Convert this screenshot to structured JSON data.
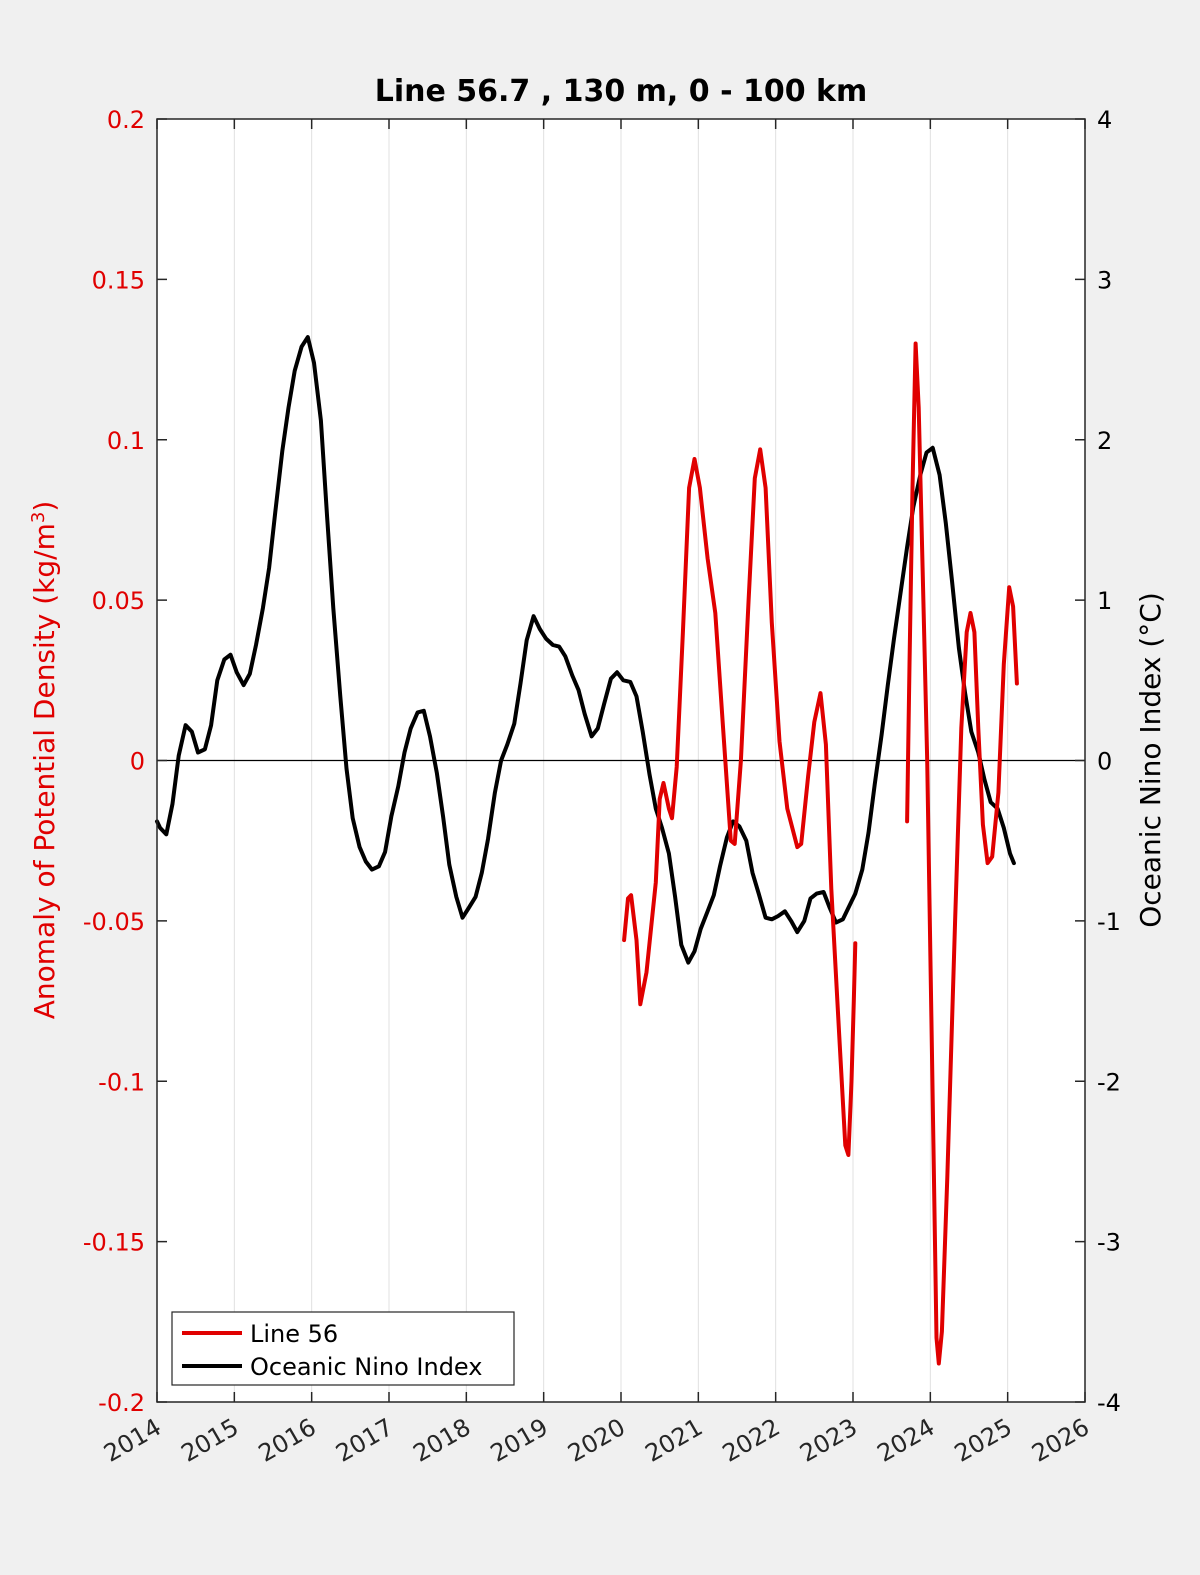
{
  "chart_data": {
    "type": "line",
    "title": "Line 56.7 , 130 m, 0 - 100 km",
    "xlim": [
      2014,
      2026
    ],
    "x_ticks": [
      "2014",
      "2015",
      "2016",
      "2017",
      "2018",
      "2019",
      "2020",
      "2021",
      "2022",
      "2023",
      "2024",
      "2025",
      "2026"
    ],
    "y_left": {
      "label_prefix": "Anomaly of Potential Density (kg/m",
      "label_sup": "3",
      "label_suffix": ")",
      "color": "#e00000",
      "lim": [
        -0.2,
        0.2
      ],
      "ticks": [
        "0.2",
        "0.15",
        "0.1",
        "0.05",
        "0",
        "-0.05",
        "-0.1",
        "-0.15",
        "-0.2"
      ],
      "tick_values": [
        0.2,
        0.15,
        0.1,
        0.05,
        0,
        -0.05,
        -0.1,
        -0.15,
        -0.2
      ]
    },
    "y_right": {
      "label": "Oceanic Nino Index (°C)",
      "color": "#000000",
      "lim": [
        -4,
        4
      ],
      "ticks": [
        "4",
        "3",
        "2",
        "1",
        "0",
        "-1",
        "-2",
        "-3",
        "-4"
      ],
      "tick_values": [
        4,
        3,
        2,
        1,
        0,
        -1,
        -2,
        -3,
        -4
      ]
    },
    "grid": "vertical",
    "legend_position": "bottom-left",
    "series": [
      {
        "name": "Line 56",
        "axis": "left",
        "color": "#e00000",
        "segments": [
          [
            [
              2020.04,
              -0.056
            ],
            [
              2020.09,
              -0.043
            ],
            [
              2020.13,
              -0.042
            ],
            [
              2020.2,
              -0.056
            ],
            [
              2020.25,
              -0.076
            ],
            [
              2020.33,
              -0.066
            ],
            [
              2020.45,
              -0.038
            ],
            [
              2020.5,
              -0.012
            ],
            [
              2020.55,
              -0.007
            ],
            [
              2020.62,
              -0.015
            ],
            [
              2020.66,
              -0.018
            ],
            [
              2020.72,
              -0.002
            ],
            [
              2020.8,
              0.04
            ],
            [
              2020.88,
              0.085
            ],
            [
              2020.95,
              0.094
            ],
            [
              2021.02,
              0.085
            ],
            [
              2021.12,
              0.063
            ],
            [
              2021.22,
              0.046
            ],
            [
              2021.32,
              0.01
            ],
            [
              2021.42,
              -0.025
            ],
            [
              2021.47,
              -0.026
            ],
            [
              2021.55,
              0.0
            ],
            [
              2021.65,
              0.05
            ],
            [
              2021.73,
              0.088
            ],
            [
              2021.8,
              0.097
            ],
            [
              2021.87,
              0.085
            ],
            [
              2021.95,
              0.043
            ],
            [
              2022.05,
              0.006
            ],
            [
              2022.15,
              -0.015
            ],
            [
              2022.28,
              -0.027
            ],
            [
              2022.33,
              -0.026
            ],
            [
              2022.42,
              -0.005
            ],
            [
              2022.5,
              0.012
            ],
            [
              2022.58,
              0.021
            ],
            [
              2022.65,
              0.005
            ],
            [
              2022.72,
              -0.04
            ],
            [
              2022.82,
              -0.085
            ],
            [
              2022.9,
              -0.12
            ],
            [
              2022.94,
              -0.123
            ],
            [
              2022.98,
              -0.1
            ],
            [
              2023.01,
              -0.075
            ],
            [
              2023.03,
              -0.057
            ]
          ],
          [
            [
              2023.7,
              -0.019
            ],
            [
              2023.73,
              0.03
            ],
            [
              2023.77,
              0.085
            ],
            [
              2023.81,
              0.13
            ],
            [
              2023.85,
              0.11
            ],
            [
              2023.9,
              0.06
            ],
            [
              2023.96,
              0.0
            ],
            [
              2024.02,
              -0.09
            ],
            [
              2024.08,
              -0.18
            ],
            [
              2024.11,
              -0.188
            ],
            [
              2024.15,
              -0.178
            ],
            [
              2024.22,
              -0.13
            ],
            [
              2024.32,
              -0.05
            ],
            [
              2024.4,
              0.01
            ],
            [
              2024.47,
              0.04
            ],
            [
              2024.52,
              0.046
            ],
            [
              2024.57,
              0.04
            ],
            [
              2024.62,
              0.01
            ],
            [
              2024.68,
              -0.02
            ],
            [
              2024.74,
              -0.032
            ],
            [
              2024.8,
              -0.03
            ],
            [
              2024.88,
              -0.01
            ],
            [
              2024.95,
              0.03
            ],
            [
              2025.02,
              0.054
            ],
            [
              2025.07,
              0.048
            ],
            [
              2025.12,
              0.024
            ]
          ]
        ]
      },
      {
        "name": "Oceanic Nino Index",
        "axis": "right",
        "color": "#000000",
        "segments": [
          [
            [
              2014.0,
              -0.38
            ],
            [
              2014.04,
              -0.42
            ],
            [
              2014.12,
              -0.46
            ],
            [
              2014.2,
              -0.27
            ],
            [
              2014.28,
              0.03
            ],
            [
              2014.37,
              0.22
            ],
            [
              2014.45,
              0.18
            ],
            [
              2014.53,
              0.05
            ],
            [
              2014.62,
              0.07
            ],
            [
              2014.7,
              0.22
            ],
            [
              2014.78,
              0.5
            ],
            [
              2014.87,
              0.63
            ],
            [
              2014.95,
              0.66
            ],
            [
              2015.03,
              0.55
            ],
            [
              2015.12,
              0.47
            ],
            [
              2015.2,
              0.54
            ],
            [
              2015.28,
              0.72
            ],
            [
              2015.37,
              0.95
            ],
            [
              2015.45,
              1.2
            ],
            [
              2015.53,
              1.55
            ],
            [
              2015.62,
              1.93
            ],
            [
              2015.7,
              2.2
            ],
            [
              2015.78,
              2.43
            ],
            [
              2015.87,
              2.58
            ],
            [
              2015.95,
              2.64
            ],
            [
              2016.03,
              2.48
            ],
            [
              2016.12,
              2.12
            ],
            [
              2016.2,
              1.52
            ],
            [
              2016.28,
              0.95
            ],
            [
              2016.37,
              0.4
            ],
            [
              2016.45,
              -0.05
            ],
            [
              2016.53,
              -0.36
            ],
            [
              2016.62,
              -0.54
            ],
            [
              2016.7,
              -0.63
            ],
            [
              2016.78,
              -0.68
            ],
            [
              2016.87,
              -0.66
            ],
            [
              2016.95,
              -0.57
            ],
            [
              2017.03,
              -0.35
            ],
            [
              2017.12,
              -0.16
            ],
            [
              2017.2,
              0.05
            ],
            [
              2017.28,
              0.2
            ],
            [
              2017.37,
              0.3
            ],
            [
              2017.45,
              0.31
            ],
            [
              2017.53,
              0.15
            ],
            [
              2017.62,
              -0.08
            ],
            [
              2017.7,
              -0.35
            ],
            [
              2017.78,
              -0.65
            ],
            [
              2017.87,
              -0.85
            ],
            [
              2017.95,
              -0.98
            ],
            [
              2018.03,
              -0.92
            ],
            [
              2018.12,
              -0.85
            ],
            [
              2018.2,
              -0.7
            ],
            [
              2018.28,
              -0.49
            ],
            [
              2018.37,
              -0.2
            ],
            [
              2018.45,
              0.0
            ],
            [
              2018.53,
              0.1
            ],
            [
              2018.62,
              0.23
            ],
            [
              2018.7,
              0.48
            ],
            [
              2018.78,
              0.75
            ],
            [
              2018.87,
              0.9
            ],
            [
              2018.95,
              0.82
            ],
            [
              2019.03,
              0.76
            ],
            [
              2019.12,
              0.72
            ],
            [
              2019.2,
              0.71
            ],
            [
              2019.28,
              0.65
            ],
            [
              2019.37,
              0.53
            ],
            [
              2019.45,
              0.44
            ],
            [
              2019.53,
              0.29
            ],
            [
              2019.62,
              0.15
            ],
            [
              2019.7,
              0.2
            ],
            [
              2019.78,
              0.35
            ],
            [
              2019.87,
              0.51
            ],
            [
              2019.95,
              0.55
            ],
            [
              2020.03,
              0.5
            ],
            [
              2020.12,
              0.49
            ],
            [
              2020.2,
              0.4
            ],
            [
              2020.28,
              0.18
            ],
            [
              2020.37,
              -0.09
            ],
            [
              2020.45,
              -0.3
            ],
            [
              2020.53,
              -0.42
            ],
            [
              2020.62,
              -0.58
            ],
            [
              2020.7,
              -0.85
            ],
            [
              2020.78,
              -1.15
            ],
            [
              2020.87,
              -1.26
            ],
            [
              2020.95,
              -1.19
            ],
            [
              2021.03,
              -1.05
            ],
            [
              2021.12,
              -0.94
            ],
            [
              2021.2,
              -0.84
            ],
            [
              2021.28,
              -0.66
            ],
            [
              2021.37,
              -0.48
            ],
            [
              2021.45,
              -0.38
            ],
            [
              2021.53,
              -0.41
            ],
            [
              2021.62,
              -0.5
            ],
            [
              2021.7,
              -0.7
            ],
            [
              2021.78,
              -0.83
            ],
            [
              2021.87,
              -0.98
            ],
            [
              2021.95,
              -0.99
            ],
            [
              2022.03,
              -0.97
            ],
            [
              2022.12,
              -0.94
            ],
            [
              2022.2,
              -1.0
            ],
            [
              2022.28,
              -1.07
            ],
            [
              2022.37,
              -1.0
            ],
            [
              2022.45,
              -0.86
            ],
            [
              2022.53,
              -0.83
            ],
            [
              2022.62,
              -0.82
            ],
            [
              2022.7,
              -0.92
            ],
            [
              2022.78,
              -1.01
            ],
            [
              2022.87,
              -0.99
            ],
            [
              2022.95,
              -0.91
            ],
            [
              2023.03,
              -0.83
            ],
            [
              2023.12,
              -0.68
            ],
            [
              2023.2,
              -0.45
            ],
            [
              2023.28,
              -0.15
            ],
            [
              2023.37,
              0.16
            ],
            [
              2023.45,
              0.47
            ],
            [
              2023.53,
              0.76
            ],
            [
              2023.62,
              1.06
            ],
            [
              2023.7,
              1.33
            ],
            [
              2023.78,
              1.58
            ],
            [
              2023.87,
              1.78
            ],
            [
              2023.95,
              1.92
            ],
            [
              2024.03,
              1.95
            ],
            [
              2024.12,
              1.78
            ],
            [
              2024.2,
              1.48
            ],
            [
              2024.28,
              1.12
            ],
            [
              2024.37,
              0.7
            ],
            [
              2024.45,
              0.42
            ],
            [
              2024.53,
              0.18
            ],
            [
              2024.62,
              0.05
            ],
            [
              2024.7,
              -0.12
            ],
            [
              2024.78,
              -0.26
            ],
            [
              2024.87,
              -0.3
            ],
            [
              2024.95,
              -0.42
            ],
            [
              2025.03,
              -0.58
            ],
            [
              2025.08,
              -0.64
            ]
          ]
        ]
      }
    ]
  }
}
